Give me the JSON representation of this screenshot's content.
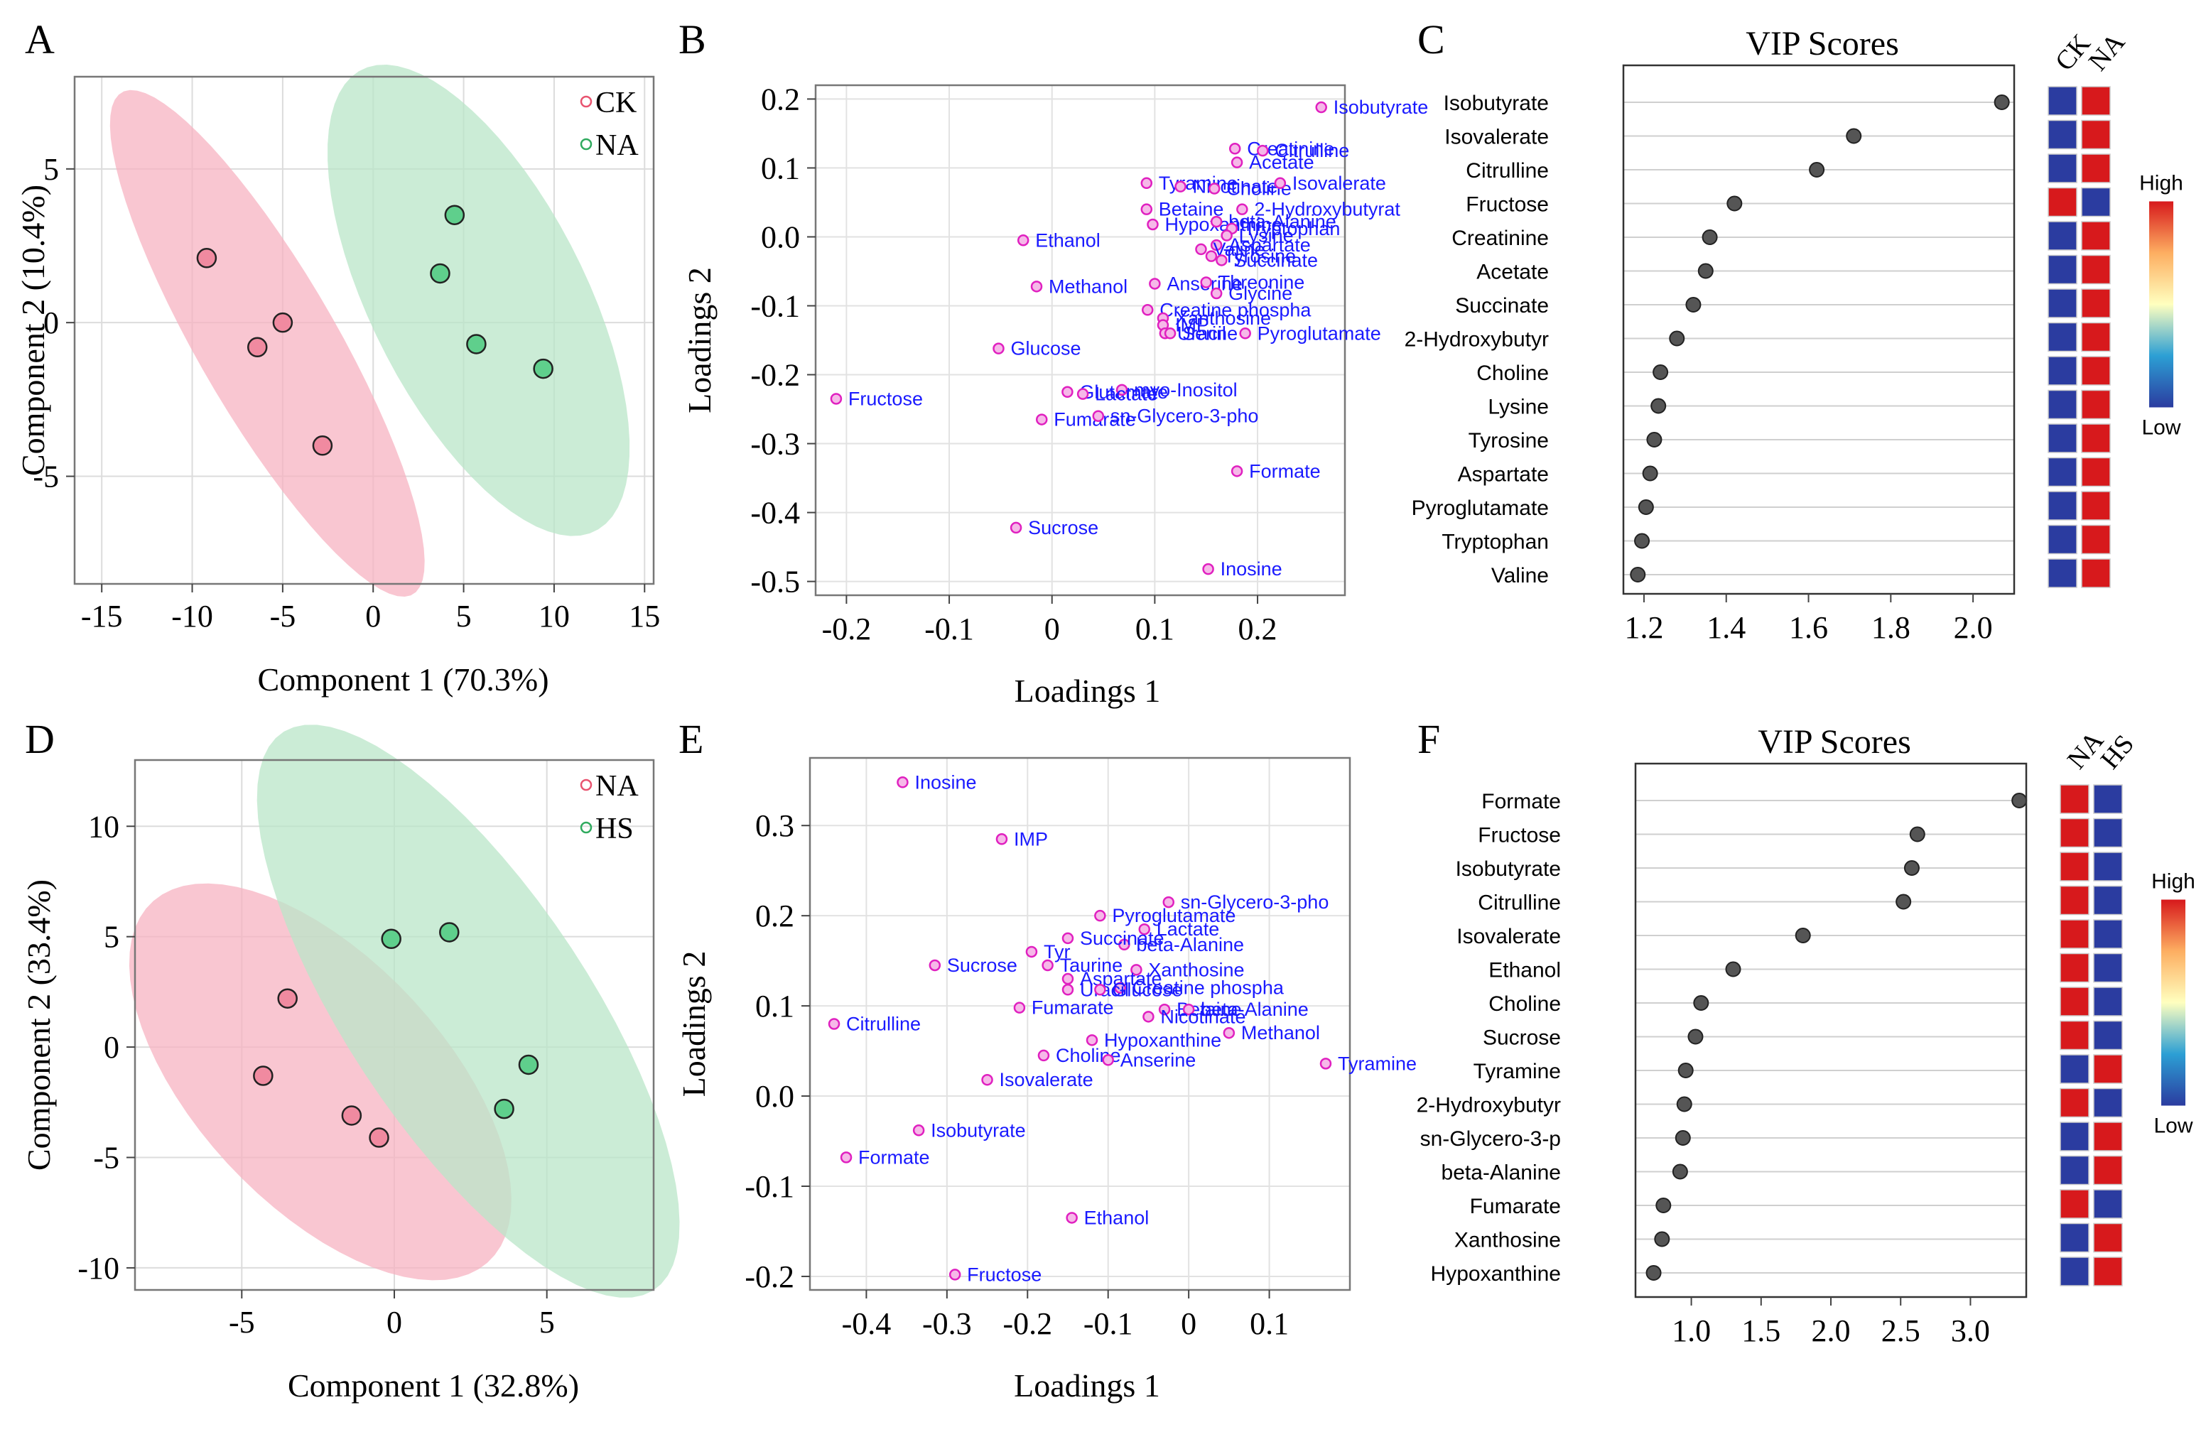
{
  "colors": {
    "ck_fill": "#f7b3c2",
    "na_fill": "#b9e6c8",
    "pink_pt": "#f08aa0",
    "green_pt": "#5fcf8c",
    "magenta": "#e020c0",
    "label_blue": "#1a1aff",
    "vip_dot": "#555555",
    "high": "#d7191c",
    "low": "#2b3ca0"
  },
  "panels": {
    "A": "A",
    "B": "B",
    "C": "C",
    "D": "D",
    "E": "E",
    "F": "F"
  },
  "chart_data": [
    {
      "id": "A",
      "type": "scatter",
      "xlabel": "Component 1 (70.3%)",
      "ylabel": "Component 2 (10.4%)",
      "xlim": [
        -16.5,
        15.5
      ],
      "ylim": [
        -8.5,
        8
      ],
      "xticks": [
        -15,
        -10,
        -5,
        0,
        5,
        10,
        15
      ],
      "yticks": [
        -5,
        0,
        5
      ],
      "legend": [
        "CK",
        "NA"
      ],
      "series": [
        {
          "name": "CK",
          "points": [
            [
              -9.2,
              2.1
            ],
            [
              -6.4,
              -0.8
            ],
            [
              -5,
              0
            ],
            [
              -2.8,
              -4
            ]
          ]
        },
        {
          "name": "NA",
          "points": [
            [
              4.5,
              3.5
            ],
            [
              3.7,
              1.6
            ],
            [
              5.7,
              -0.7
            ],
            [
              9.4,
              -1.5
            ]
          ]
        }
      ]
    },
    {
      "id": "B",
      "type": "scatter",
      "xlabel": "Loadings 1",
      "ylabel": "Loadings 2",
      "xlim": [
        -0.23,
        0.285
      ],
      "ylim": [
        -0.52,
        0.22
      ],
      "xticks": [
        "-0.2",
        "-0.1",
        "0",
        "0.1",
        "0.2"
      ],
      "yticks": [
        "0.2",
        "0.1",
        "0.0",
        "-0.1",
        "-0.2",
        "-0.3",
        "-0.4",
        "-0.5"
      ],
      "points": [
        {
          "label": "Isobutyrate",
          "x": 0.262,
          "y": 0.188
        },
        {
          "label": "Creatinine",
          "x": 0.178,
          "y": 0.128
        },
        {
          "label": "Citrulline",
          "x": 0.205,
          "y": 0.125
        },
        {
          "label": "Acetate",
          "x": 0.18,
          "y": 0.108
        },
        {
          "label": "Tyramine",
          "x": 0.092,
          "y": 0.078
        },
        {
          "label": "Nicotinate",
          "x": 0.125,
          "y": 0.073
        },
        {
          "label": "Choline",
          "x": 0.158,
          "y": 0.07
        },
        {
          "label": "Isovalerate",
          "x": 0.222,
          "y": 0.078
        },
        {
          "label": "Betaine",
          "x": 0.092,
          "y": 0.04
        },
        {
          "label": "2-Hydroxybutyrat",
          "x": 0.185,
          "y": 0.04
        },
        {
          "label": "Hypoxanthine",
          "x": 0.098,
          "y": 0.018
        },
        {
          "label": "beta-Alanine",
          "x": 0.16,
          "y": 0.022
        },
        {
          "label": "Tryptophan",
          "x": 0.175,
          "y": 0.012
        },
        {
          "label": "Lysine",
          "x": 0.17,
          "y": 0.002
        },
        {
          "label": "Aspartate",
          "x": 0.16,
          "y": -0.012
        },
        {
          "label": "Valine",
          "x": 0.145,
          "y": -0.018
        },
        {
          "label": "Tyrosine",
          "x": 0.155,
          "y": -0.028
        },
        {
          "label": "Succinate",
          "x": 0.165,
          "y": -0.034
        },
        {
          "label": "Ethanol",
          "x": -0.028,
          "y": -0.005
        },
        {
          "label": "Methanol",
          "x": -0.015,
          "y": -0.072
        },
        {
          "label": "Anserine",
          "x": 0.1,
          "y": -0.068
        },
        {
          "label": "Threonine",
          "x": 0.15,
          "y": -0.066
        },
        {
          "label": "Glycine",
          "x": 0.16,
          "y": -0.082
        },
        {
          "label": "Creatine phospha",
          "x": 0.093,
          "y": -0.106
        },
        {
          "label": "Xanthosine",
          "x": 0.108,
          "y": -0.118
        },
        {
          "label": "IMP",
          "x": 0.108,
          "y": -0.128
        },
        {
          "label": "Uracil",
          "x": 0.11,
          "y": -0.14
        },
        {
          "label": "Serine",
          "x": 0.115,
          "y": -0.14
        },
        {
          "label": "Pyroglutamate",
          "x": 0.188,
          "y": -0.14
        },
        {
          "label": "Glucose",
          "x": -0.052,
          "y": -0.162
        },
        {
          "label": "Glutamate",
          "x": 0.015,
          "y": -0.225
        },
        {
          "label": "myo-Inositol",
          "x": 0.068,
          "y": -0.222
        },
        {
          "label": "Lactate",
          "x": 0.03,
          "y": -0.228
        },
        {
          "label": "Fructose",
          "x": -0.21,
          "y": -0.235
        },
        {
          "label": "Fumarate",
          "x": -0.01,
          "y": -0.265
        },
        {
          "label": "sn-Glycero-3-pho",
          "x": 0.045,
          "y": -0.26
        },
        {
          "label": "Formate",
          "x": 0.18,
          "y": -0.34
        },
        {
          "label": "Sucrose",
          "x": -0.035,
          "y": -0.422
        },
        {
          "label": "Inosine",
          "x": 0.152,
          "y": -0.482
        }
      ]
    },
    {
      "id": "C",
      "type": "dot",
      "title": "VIP Scores",
      "xlim": [
        1.15,
        2.1
      ],
      "xticks": [
        "1.2",
        "1.4",
        "1.6",
        "1.8",
        "2.0"
      ],
      "groups": [
        "CK",
        "NA"
      ],
      "scale_high": "High",
      "scale_low": "Low",
      "items": [
        {
          "label": "Isobutyrate",
          "vip": 2.07,
          "CK": "low",
          "NA": "high"
        },
        {
          "label": "Isovalerate",
          "vip": 1.71,
          "CK": "low",
          "NA": "high"
        },
        {
          "label": "Citrulline",
          "vip": 1.62,
          "CK": "low",
          "NA": "high"
        },
        {
          "label": "Fructose",
          "vip": 1.42,
          "CK": "high",
          "NA": "low"
        },
        {
          "label": "Creatinine",
          "vip": 1.36,
          "CK": "low",
          "NA": "high"
        },
        {
          "label": "Acetate",
          "vip": 1.35,
          "CK": "low",
          "NA": "high"
        },
        {
          "label": "Succinate",
          "vip": 1.32,
          "CK": "low",
          "NA": "high"
        },
        {
          "label": "2-Hydroxybutyr",
          "vip": 1.28,
          "CK": "low",
          "NA": "high"
        },
        {
          "label": "Choline",
          "vip": 1.24,
          "CK": "low",
          "NA": "high"
        },
        {
          "label": "Lysine",
          "vip": 1.235,
          "CK": "low",
          "NA": "high"
        },
        {
          "label": "Tyrosine",
          "vip": 1.225,
          "CK": "low",
          "NA": "high"
        },
        {
          "label": "Aspartate",
          "vip": 1.215,
          "CK": "low",
          "NA": "high"
        },
        {
          "label": "Pyroglutamate",
          "vip": 1.205,
          "CK": "low",
          "NA": "high"
        },
        {
          "label": "Tryptophan",
          "vip": 1.195,
          "CK": "low",
          "NA": "high"
        },
        {
          "label": "Valine",
          "vip": 1.185,
          "CK": "low",
          "NA": "high"
        }
      ]
    },
    {
      "id": "D",
      "type": "scatter",
      "xlabel": "Component 1 (32.8%)",
      "ylabel": "Component 2 (33.4%)",
      "xlim": [
        -8.5,
        8.5
      ],
      "ylim": [
        -11,
        13
      ],
      "xticks": [
        -5,
        0,
        5
      ],
      "yticks": [
        10,
        5,
        0,
        -5,
        -10
      ],
      "legend": [
        "NA",
        "HS"
      ],
      "series": [
        {
          "name": "NA",
          "points": [
            [
              -3.5,
              2.2
            ],
            [
              -4.3,
              -1.3
            ],
            [
              -1.4,
              -3.1
            ],
            [
              -0.5,
              -4.1
            ]
          ]
        },
        {
          "name": "HS",
          "points": [
            [
              -0.1,
              4.9
            ],
            [
              1.8,
              5.2
            ],
            [
              4.4,
              -0.8
            ],
            [
              3.6,
              -2.8
            ]
          ]
        }
      ]
    },
    {
      "id": "E",
      "type": "scatter",
      "xlabel": "Loadings 1",
      "ylabel": "Loadings 2",
      "xlim": [
        -0.47,
        0.2
      ],
      "ylim": [
        -0.215,
        0.375
      ],
      "xticks": [
        "-0.4",
        "-0.3",
        "-0.2",
        "-0.1",
        "0",
        "0.1"
      ],
      "yticks": [
        "0.3",
        "0.2",
        "0.1",
        "0.0",
        "-0.1",
        "-0.2"
      ],
      "points": [
        {
          "label": "Inosine",
          "x": -0.355,
          "y": 0.348
        },
        {
          "label": "IMP",
          "x": -0.232,
          "y": 0.285
        },
        {
          "label": "sn-Glycero-3-pho",
          "x": -0.025,
          "y": 0.215
        },
        {
          "label": "Pyroglutamate",
          "x": -0.11,
          "y": 0.2
        },
        {
          "label": "Lactate",
          "x": -0.055,
          "y": 0.185
        },
        {
          "label": "beta-Alanine",
          "x": -0.08,
          "y": 0.168
        },
        {
          "label": "Tyr",
          "x": -0.195,
          "y": 0.16
        },
        {
          "label": "Succinate",
          "x": -0.15,
          "y": 0.175
        },
        {
          "label": "Sucrose",
          "x": -0.315,
          "y": 0.145
        },
        {
          "label": "Taurine",
          "x": -0.175,
          "y": 0.145
        },
        {
          "label": "Xanthosine",
          "x": -0.065,
          "y": 0.14
        },
        {
          "label": "Aspartate",
          "x": -0.15,
          "y": 0.13
        },
        {
          "label": "Creatine phospha",
          "x": -0.085,
          "y": 0.12
        },
        {
          "label": "Uracil",
          "x": -0.15,
          "y": 0.118
        },
        {
          "label": "Glucose",
          "x": -0.11,
          "y": 0.118
        },
        {
          "label": "Fumarate",
          "x": -0.21,
          "y": 0.098
        },
        {
          "label": "Betaine",
          "x": -0.03,
          "y": 0.096
        },
        {
          "label": "beta-Alanine",
          "x": 0.0,
          "y": 0.096
        },
        {
          "label": "Nicotinate",
          "x": -0.05,
          "y": 0.088
        },
        {
          "label": "Citrulline",
          "x": -0.44,
          "y": 0.08
        },
        {
          "label": "Methanol",
          "x": 0.05,
          "y": 0.07
        },
        {
          "label": "Hypoxanthine",
          "x": -0.12,
          "y": 0.062
        },
        {
          "label": "Choline",
          "x": -0.18,
          "y": 0.045
        },
        {
          "label": "Anserine",
          "x": -0.1,
          "y": 0.04
        },
        {
          "label": "Tyramine",
          "x": 0.17,
          "y": 0.036
        },
        {
          "label": "Isovalerate",
          "x": -0.25,
          "y": 0.018
        },
        {
          "label": "Isobutyrate",
          "x": -0.335,
          "y": -0.038
        },
        {
          "label": "Formate",
          "x": -0.425,
          "y": -0.068
        },
        {
          "label": "Ethanol",
          "x": -0.145,
          "y": -0.135
        },
        {
          "label": "Fructose",
          "x": -0.29,
          "y": -0.198
        }
      ]
    },
    {
      "id": "F",
      "type": "dot",
      "title": "VIP Scores",
      "xlim": [
        0.6,
        3.4
      ],
      "xticks": [
        "1.0",
        "1.5",
        "2.0",
        "2.5",
        "3.0"
      ],
      "groups": [
        "NA",
        "HS"
      ],
      "scale_high": "High",
      "scale_low": "Low",
      "items": [
        {
          "label": "Formate",
          "vip": 3.35,
          "NA": "high",
          "HS": "low"
        },
        {
          "label": "Fructose",
          "vip": 2.62,
          "NA": "high",
          "HS": "low"
        },
        {
          "label": "Isobutyrate",
          "vip": 2.58,
          "NA": "high",
          "HS": "low"
        },
        {
          "label": "Citrulline",
          "vip": 2.52,
          "NA": "high",
          "HS": "low"
        },
        {
          "label": "Isovalerate",
          "vip": 1.8,
          "NA": "high",
          "HS": "low"
        },
        {
          "label": "Ethanol",
          "vip": 1.3,
          "NA": "high",
          "HS": "low"
        },
        {
          "label": "Choline",
          "vip": 1.07,
          "NA": "high",
          "HS": "low"
        },
        {
          "label": "Sucrose",
          "vip": 1.03,
          "NA": "high",
          "HS": "low"
        },
        {
          "label": "Tyramine",
          "vip": 0.96,
          "NA": "low",
          "HS": "high"
        },
        {
          "label": "2-Hydroxybutyr",
          "vip": 0.95,
          "NA": "high",
          "HS": "low"
        },
        {
          "label": "sn-Glycero-3-p",
          "vip": 0.94,
          "NA": "low",
          "HS": "high"
        },
        {
          "label": "beta-Alanine",
          "vip": 0.92,
          "NA": "low",
          "HS": "high"
        },
        {
          "label": "Fumarate",
          "vip": 0.8,
          "NA": "high",
          "HS": "low"
        },
        {
          "label": "Xanthosine",
          "vip": 0.79,
          "NA": "low",
          "HS": "high"
        },
        {
          "label": "Hypoxanthine",
          "vip": 0.73,
          "NA": "low",
          "HS": "high"
        }
      ]
    }
  ]
}
